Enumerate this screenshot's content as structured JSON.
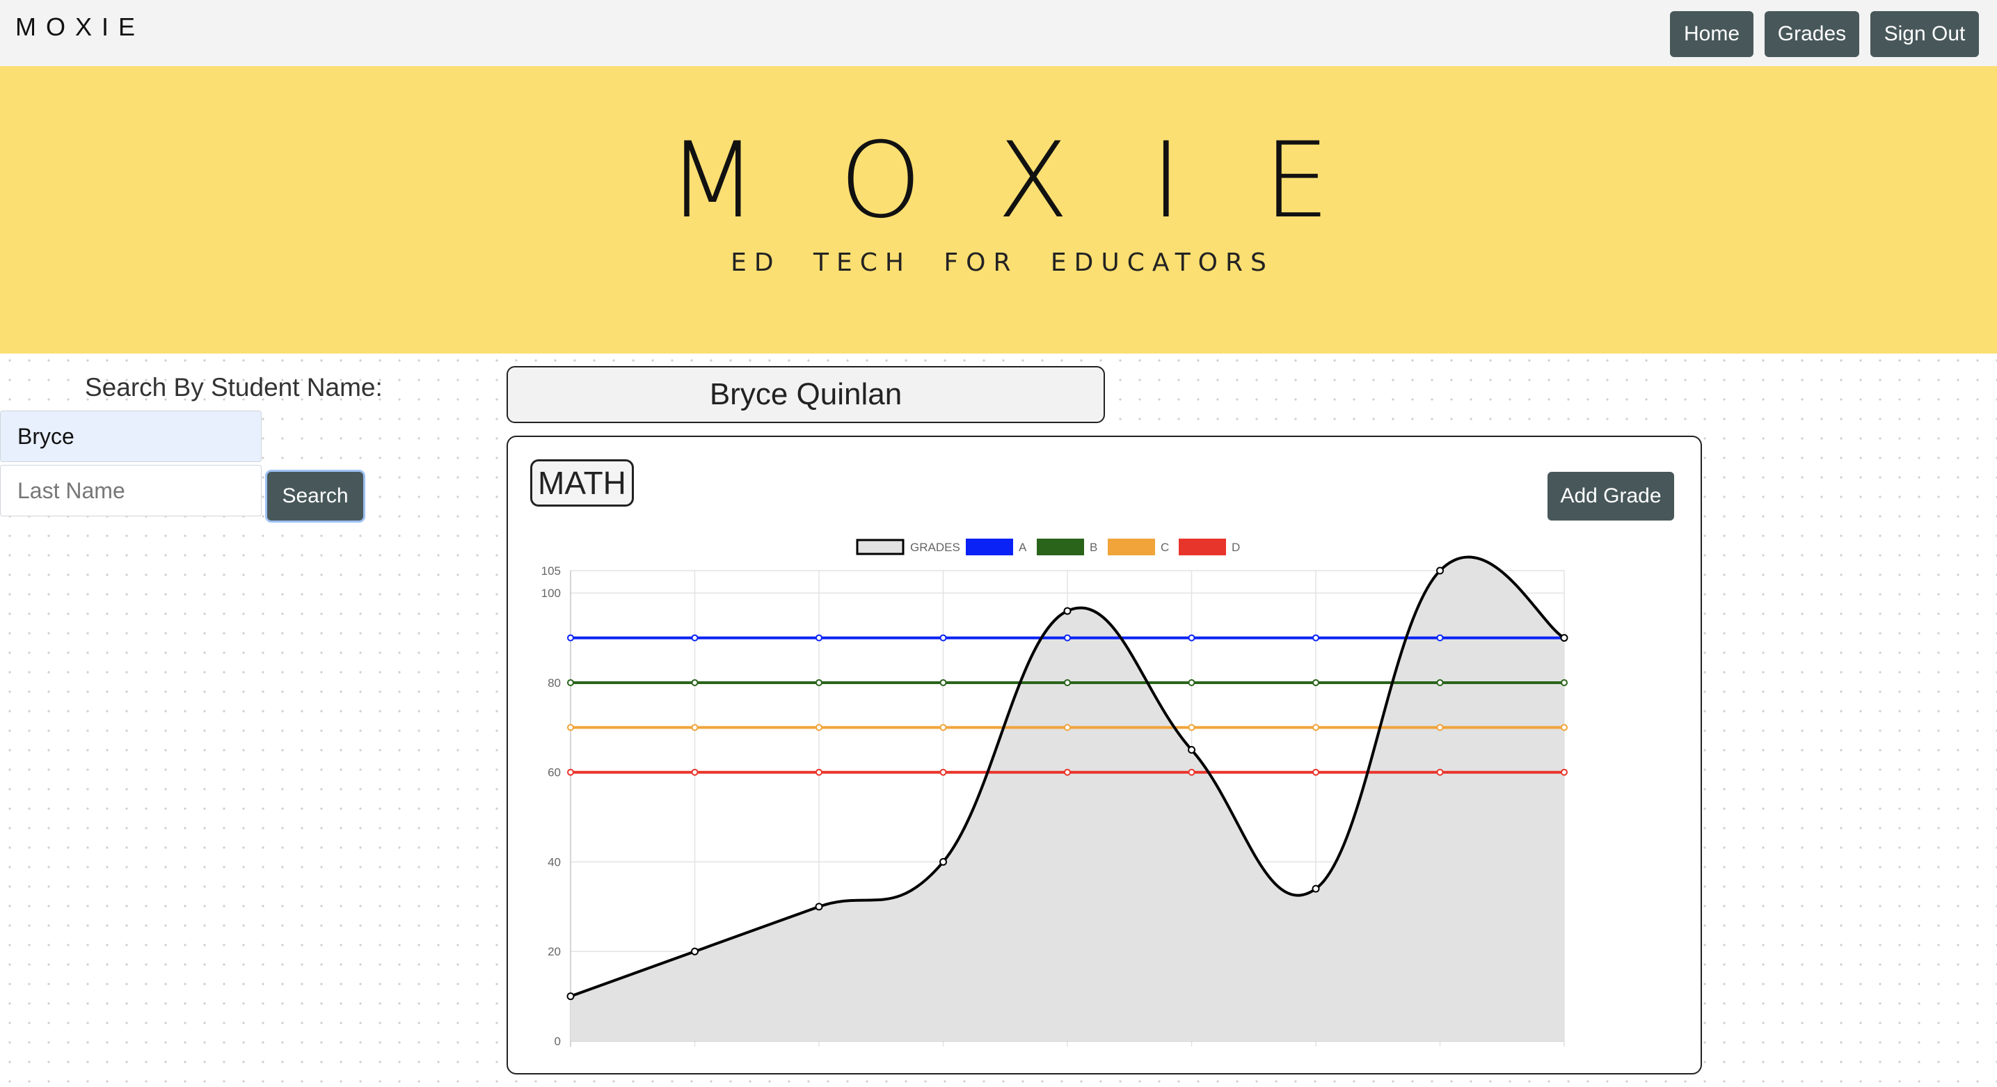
{
  "nav": {
    "brand": "MOXIE",
    "buttons": [
      "Home",
      "Grades",
      "Sign Out"
    ]
  },
  "hero": {
    "logo": "MOXIE",
    "tagline": "ED TECH FOR EDUCATORS",
    "background": "#fbdf72"
  },
  "search": {
    "label": "Search By Student Name:",
    "first_name_value": "Bryce",
    "last_name_placeholder": "Last Name",
    "button": "Search"
  },
  "student": {
    "name": "Bryce Quinlan"
  },
  "card": {
    "subject": "MATH",
    "add_button": "Add Grade"
  },
  "colors": {
    "button": "#48575a",
    "A": "#0a22f5",
    "B": "#2a641b",
    "C": "#f0a43a",
    "D": "#e8352b"
  },
  "chart_data": {
    "type": "line",
    "legend": [
      "GRADES",
      "A",
      "B",
      "C",
      "D"
    ],
    "legend_position": "top",
    "yticks": [
      0,
      20,
      40,
      60,
      80,
      100,
      105
    ],
    "ylim": [
      0,
      105
    ],
    "grid": true,
    "series": [
      {
        "name": "GRADES",
        "values": [
          10,
          20,
          30,
          40,
          96,
          65,
          34,
          105,
          90
        ],
        "color": "#000000",
        "fill": "#e2e2e2"
      },
      {
        "name": "A",
        "values": [
          90,
          90,
          90,
          90,
          90,
          90,
          90,
          90,
          90
        ],
        "color": "#0a22f5"
      },
      {
        "name": "B",
        "values": [
          80,
          80,
          80,
          80,
          80,
          80,
          80,
          80,
          80
        ],
        "color": "#2a641b"
      },
      {
        "name": "C",
        "values": [
          70,
          70,
          70,
          70,
          70,
          70,
          70,
          70,
          70
        ],
        "color": "#f0a43a"
      },
      {
        "name": "D",
        "values": [
          60,
          60,
          60,
          60,
          60,
          60,
          60,
          60,
          60
        ],
        "color": "#e8352b"
      }
    ]
  }
}
